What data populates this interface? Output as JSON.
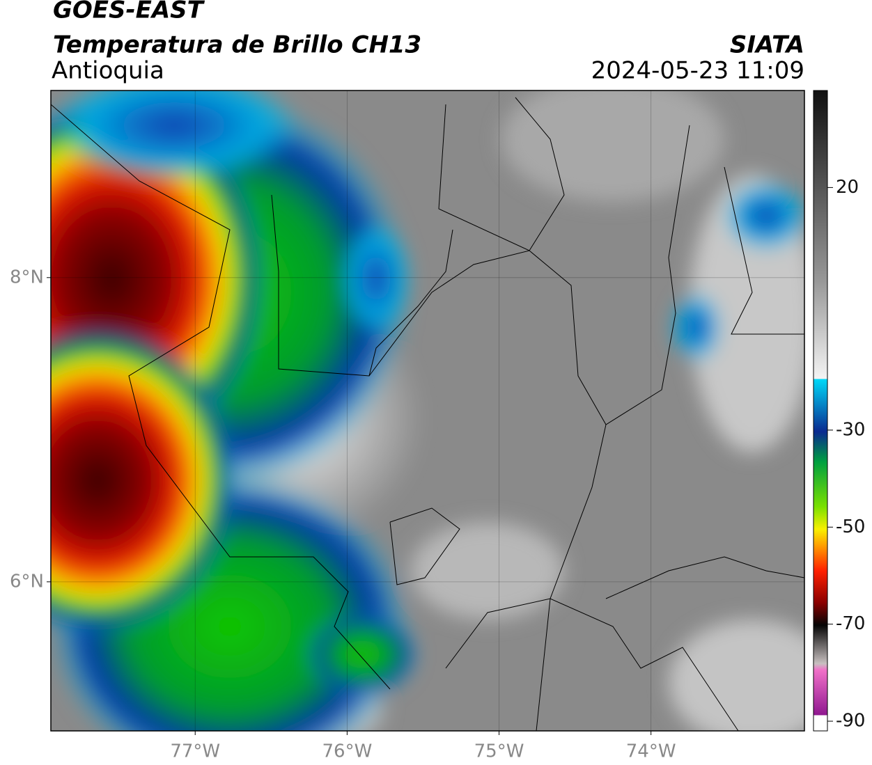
{
  "chart_data": {
    "type": "map",
    "title": "GOES-EAST",
    "subtitle": "Temperatura de Brillo CH13",
    "region": "Antioquia",
    "source": "SIATA",
    "timestamp": "2024-05-23 11:09",
    "xlim": [
      -77.95,
      -72.99
    ],
    "ylim": [
      5.02,
      9.23
    ],
    "xticks": [
      {
        "value": -77,
        "label": "77°W"
      },
      {
        "value": -76,
        "label": "76°W"
      },
      {
        "value": -75,
        "label": "75°W"
      },
      {
        "value": -74,
        "label": "74°W"
      }
    ],
    "yticks": [
      {
        "value": 8,
        "label": "8°N"
      },
      {
        "value": 6,
        "label": "6°N"
      }
    ],
    "grid": true,
    "clim": [
      -92,
      40
    ],
    "cticks": [
      20,
      -30,
      -50,
      -70,
      -90
    ]
  }
}
